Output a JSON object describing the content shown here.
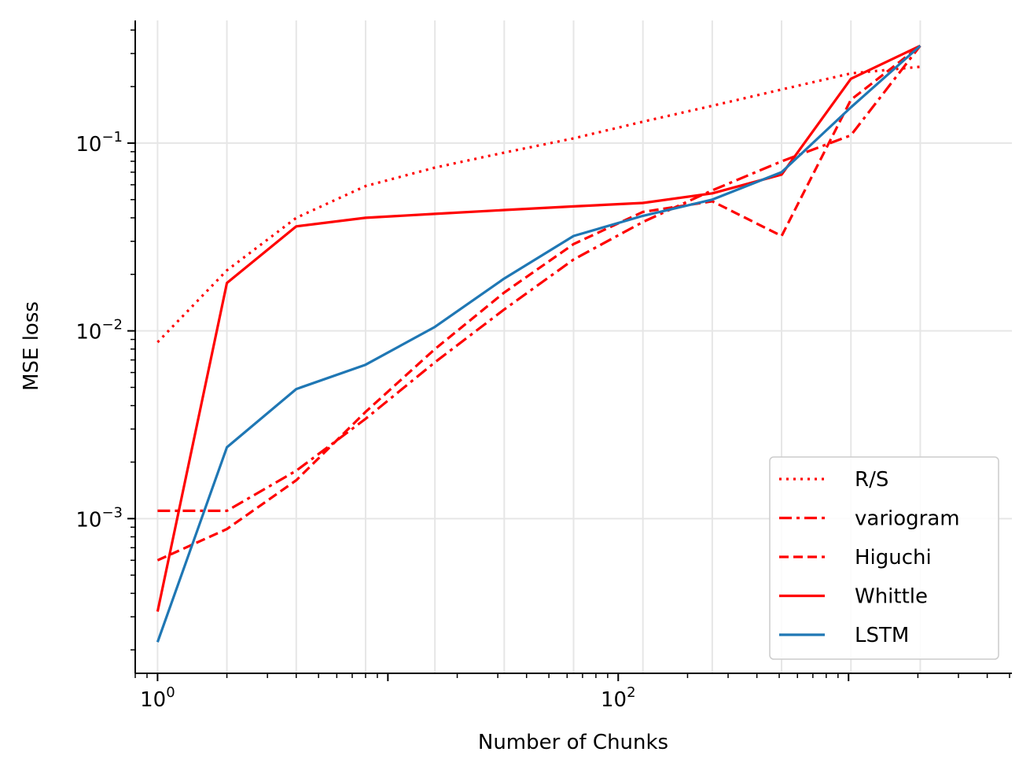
{
  "chart_data": {
    "type": "line",
    "xlabel": "Number of Chunks",
    "ylabel": "MSE loss",
    "xscale": "log2",
    "yscale": "log10",
    "x_tick_labels": [
      {
        "base": "10",
        "exp": "0",
        "value": 1
      },
      {
        "base": "10",
        "exp": "2",
        "value": 100
      }
    ],
    "y_tick_labels": [
      {
        "base": "10",
        "exp": "−3",
        "value": 0.001
      },
      {
        "base": "10",
        "exp": "−2",
        "value": 0.01
      },
      {
        "base": "10",
        "exp": "−1",
        "value": 0.1
      }
    ],
    "xlim": [
      0.8,
      5120
    ],
    "ylim": [
      0.00015,
      0.45
    ],
    "grid": true,
    "legend_position": "bottom-right",
    "x": [
      1,
      2,
      4,
      8,
      16,
      32,
      64,
      128,
      256,
      512,
      1024,
      2048
    ],
    "series": [
      {
        "name": "R/S",
        "color": "#ff0000",
        "dash": "dotted",
        "values": [
          0.0087,
          0.021,
          0.04,
          0.059,
          0.074,
          0.089,
          0.106,
          0.13,
          0.158,
          0.193,
          0.235,
          0.255
        ]
      },
      {
        "name": "variogram",
        "color": "#ff0000",
        "dash": "dashdot",
        "values": [
          0.0011,
          0.0011,
          0.0018,
          0.0034,
          0.0068,
          0.013,
          0.024,
          0.038,
          0.056,
          0.08,
          0.11,
          0.33
        ]
      },
      {
        "name": "Higuchi",
        "color": "#ff0000",
        "dash": "dashed",
        "values": [
          0.0006,
          0.00088,
          0.0016,
          0.0037,
          0.008,
          0.016,
          0.029,
          0.043,
          0.049,
          0.032,
          0.17,
          0.33
        ]
      },
      {
        "name": "Whittle",
        "color": "#ff0000",
        "dash": "solid",
        "values": [
          0.00032,
          0.018,
          0.036,
          0.04,
          0.042,
          0.044,
          0.046,
          0.048,
          0.054,
          0.068,
          0.22,
          0.33
        ]
      },
      {
        "name": "LSTM",
        "color": "#1f77b4",
        "dash": "solid",
        "values": [
          0.00022,
          0.0024,
          0.0049,
          0.0066,
          0.0105,
          0.019,
          0.032,
          0.041,
          0.05,
          0.07,
          0.155,
          0.33
        ]
      }
    ]
  }
}
